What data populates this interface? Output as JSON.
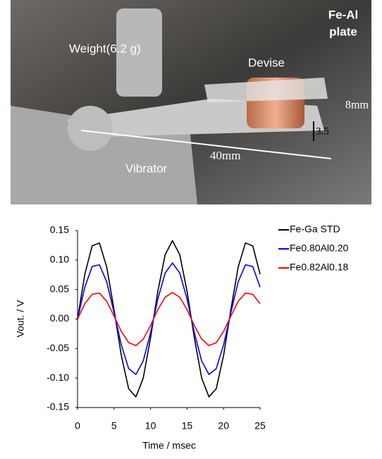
{
  "photo": {
    "labels": [
      "Weight(6.2 g)",
      "Devise",
      "Fe-Al",
      "plate",
      "8mm",
      "3.5",
      "Vibrator",
      "40mm"
    ]
  },
  "chart_data": {
    "type": "line",
    "x_label": "Time / msec",
    "y_label": "Vout. / V",
    "x": [
      0,
      1,
      2,
      3,
      4,
      5,
      6,
      7,
      8,
      9,
      10,
      11,
      12,
      13,
      14,
      15,
      16,
      17,
      18,
      19,
      20,
      21,
      22,
      23,
      24,
      25
    ],
    "series": [
      {
        "name": "Fe-Ga STD",
        "color": "#000000",
        "values": [
          0,
          0.076,
          0.124,
          0.129,
          0.088,
          0.016,
          -0.062,
          -0.118,
          -0.132,
          -0.1,
          -0.032,
          0.047,
          0.109,
          0.133,
          0.109,
          0.047,
          -0.032,
          -0.1,
          -0.132,
          -0.118,
          -0.062,
          0.016,
          0.088,
          0.129,
          0.124,
          0.076
        ]
      },
      {
        "name": "Fe0.80Al0.20",
        "color": "#0000ff",
        "values": [
          0,
          0.054,
          0.089,
          0.092,
          0.063,
          0.011,
          -0.044,
          -0.084,
          -0.094,
          -0.071,
          -0.023,
          0.034,
          0.078,
          0.095,
          0.078,
          0.034,
          -0.023,
          -0.071,
          -0.094,
          -0.084,
          -0.044,
          0.011,
          0.063,
          0.092,
          0.089,
          0.054
        ]
      },
      {
        "name": "Fe0.82Al0.18",
        "color": "#ff0000",
        "values": [
          0,
          0.026,
          0.042,
          0.044,
          0.03,
          0.005,
          -0.021,
          -0.04,
          -0.045,
          -0.034,
          -0.011,
          0.016,
          0.037,
          0.045,
          0.037,
          0.016,
          -0.011,
          -0.034,
          -0.045,
          -0.04,
          -0.021,
          0.005,
          0.03,
          0.044,
          0.042,
          0.026
        ]
      }
    ],
    "xlim": [
      0,
      25
    ],
    "xticks": [
      0,
      5,
      10,
      15,
      20,
      25
    ],
    "ylim": [
      -0.15,
      0.15
    ],
    "yticks": [
      -0.15,
      {
        "value": -0.1,
        "label": "-0.10"
      },
      -0.05,
      {
        "value": 0,
        "label": "0.00"
      },
      0.05,
      {
        "value": 0.1,
        "label": "0.10"
      },
      0.15
    ],
    "legend": "right"
  }
}
